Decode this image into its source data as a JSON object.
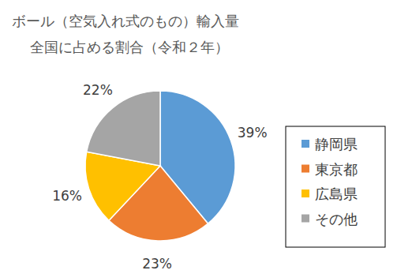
{
  "chart_data": {
    "type": "pie",
    "title": "ボール（空気入れ式のもの）輸入量",
    "subtitle": "全国に占める割合（令和２年）",
    "categories": [
      "静岡県",
      "東京都",
      "広島県",
      "その他"
    ],
    "values": [
      39,
      23,
      16,
      22
    ],
    "value_labels": [
      "39%",
      "23%",
      "16%",
      "22%"
    ],
    "colors": [
      "#5b9bd5",
      "#ed7d31",
      "#ffc000",
      "#a5a5a5"
    ],
    "data_labels": true,
    "legend": "right"
  }
}
